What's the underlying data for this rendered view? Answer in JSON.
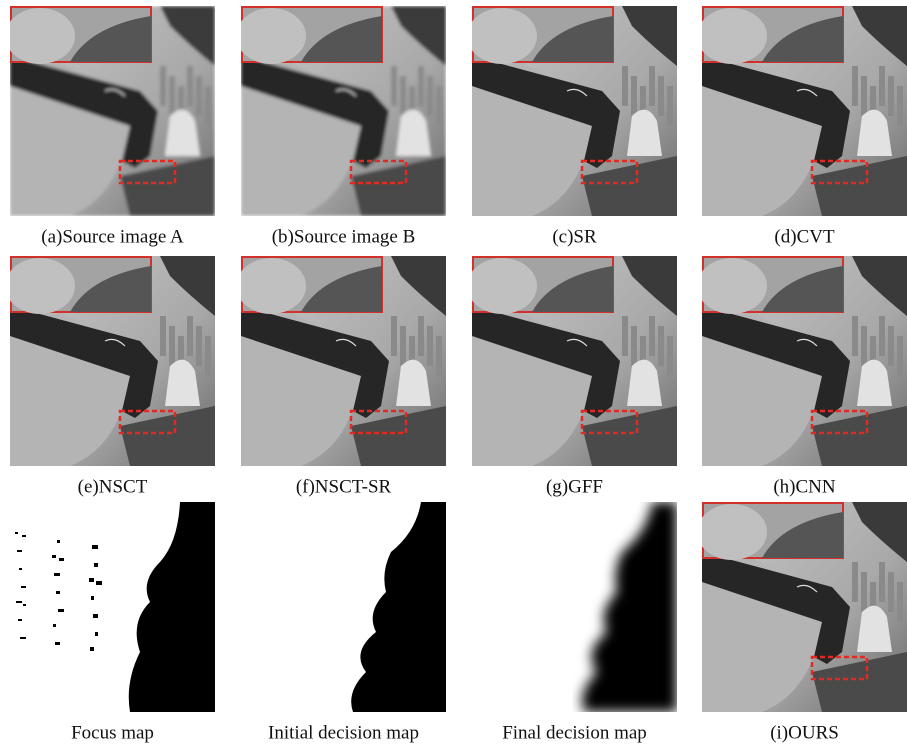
{
  "panels": [
    {
      "caption": "(a)Source image A"
    },
    {
      "caption": "(b)Source image B"
    },
    {
      "caption": "(c)SR"
    },
    {
      "caption": "(d)CVT"
    },
    {
      "caption": "(e)NSCT"
    },
    {
      "caption": "(f)NSCT-SR"
    },
    {
      "caption": "(g)GFF"
    },
    {
      "caption": "(h)CNN"
    },
    {
      "caption": "Focus map"
    },
    {
      "caption": "Initial decision map"
    },
    {
      "caption": "Final decision map"
    },
    {
      "caption": "(i)OURS"
    }
  ]
}
